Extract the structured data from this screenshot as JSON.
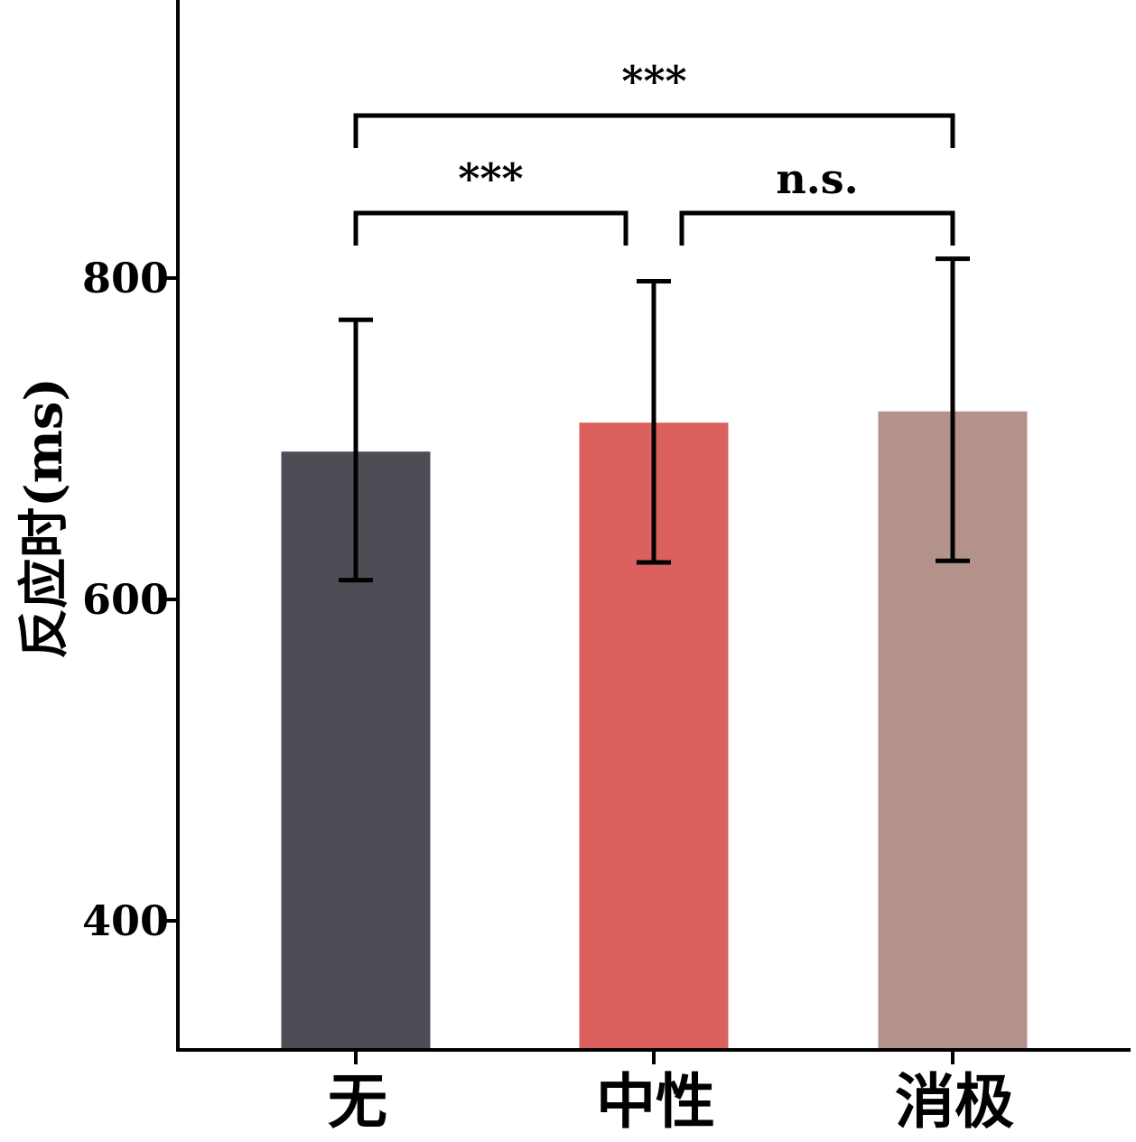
{
  "chart_data": {
    "type": "bar",
    "title": "",
    "xlabel": "",
    "ylabel": "反应时(ms)",
    "categories": [
      "无",
      "中性",
      "消极"
    ],
    "values": [
      692,
      710,
      717
    ],
    "error_low": [
      612,
      623,
      624
    ],
    "error_high": [
      774,
      798,
      812
    ],
    "colors": [
      "#4e4c55",
      "#da615d",
      "#b3928b"
    ],
    "yticks": [
      400,
      600,
      800
    ],
    "ylim": [
      320,
      970
    ],
    "grid": false,
    "legend": "none",
    "comparisons": [
      {
        "from": 0,
        "to": 2,
        "label": "***",
        "level": 2
      },
      {
        "from": 0,
        "to": 1,
        "label": "***",
        "level": 1
      },
      {
        "from": 1,
        "to": 2,
        "label": "n.s.",
        "level": 1
      }
    ]
  }
}
